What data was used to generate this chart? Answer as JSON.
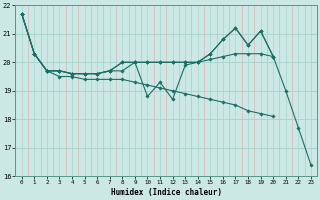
{
  "title": "",
  "xlabel": "Humidex (Indice chaleur)",
  "background_color": "#cce8e4",
  "grid_color_major": "#aad4cc",
  "grid_color_minor": "#ddf0ee",
  "line_color": "#1a6e66",
  "xlim": [
    -0.5,
    23.5
  ],
  "ylim": [
    16,
    22
  ],
  "yticks": [
    16,
    17,
    18,
    19,
    20,
    21,
    22
  ],
  "xticks": [
    0,
    1,
    2,
    3,
    4,
    5,
    6,
    7,
    8,
    9,
    10,
    11,
    12,
    13,
    14,
    15,
    16,
    17,
    18,
    19,
    20,
    21,
    22,
    23
  ],
  "series": [
    [
      21.7,
      20.3,
      19.7,
      19.7,
      19.6,
      19.6,
      19.6,
      19.7,
      19.7,
      20.0,
      18.8,
      19.3,
      18.7,
      19.9,
      20.0,
      20.3,
      20.8,
      21.2,
      20.6,
      21.1,
      20.2,
      19.0,
      17.7,
      16.4
    ],
    [
      21.7,
      20.3,
      19.7,
      19.7,
      19.6,
      19.6,
      19.6,
      19.7,
      20.0,
      20.0,
      20.0,
      20.0,
      20.0,
      20.0,
      20.0,
      20.1,
      20.2,
      20.3,
      20.3,
      20.3,
      20.2,
      null,
      null,
      null
    ],
    [
      21.7,
      20.3,
      19.7,
      19.7,
      19.6,
      19.6,
      19.6,
      19.7,
      20.0,
      20.0,
      20.0,
      20.0,
      20.0,
      20.0,
      20.0,
      20.3,
      20.8,
      21.2,
      20.6,
      21.1,
      20.2,
      null,
      null,
      null
    ],
    [
      21.7,
      20.3,
      19.7,
      19.5,
      19.5,
      19.4,
      19.4,
      19.4,
      19.4,
      19.3,
      19.2,
      19.1,
      19.0,
      18.9,
      18.8,
      18.7,
      18.6,
      18.5,
      18.3,
      18.2,
      18.1,
      null,
      null,
      null
    ]
  ]
}
